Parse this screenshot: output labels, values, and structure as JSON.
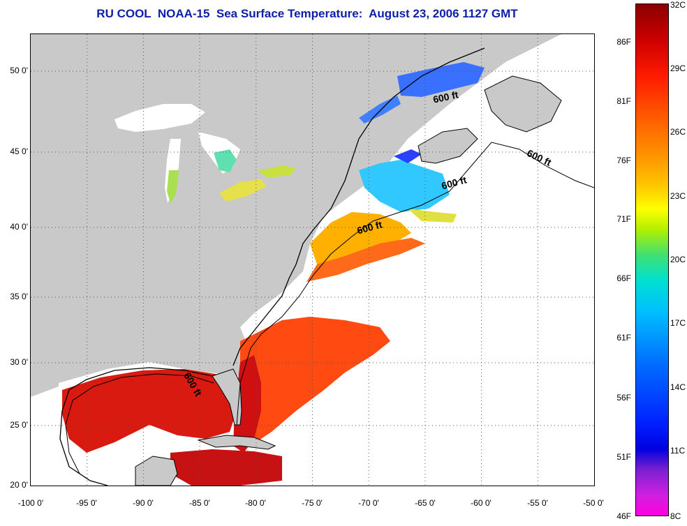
{
  "title": "RU COOL  NOAA-15  Sea Surface Temperature:  August 23, 2006 1127 GMT",
  "latitude_labels": [
    "50 0'",
    "45 0'",
    "40 0'",
    "35 0'",
    "30 0'",
    "25 0'",
    "20 0'"
  ],
  "longitude_labels": [
    "-100 0'",
    "-95 0'",
    "-90 0'",
    "-85 0'",
    "-80 0'",
    "-75 0'",
    "-70 0'",
    "-65 0'",
    "-60 0'",
    "-55 0'",
    "-50 0'"
  ],
  "colorbar": {
    "fahrenheit_labels": [
      "86F",
      "81F",
      "76F",
      "71F",
      "66F",
      "61F",
      "56F",
      "51F",
      "46F"
    ],
    "celsius_labels": [
      "32C",
      "29C",
      "26C",
      "23C",
      "20C",
      "17C",
      "14C",
      "11C",
      "8C"
    ]
  },
  "contour_labels": [
    "600 ft",
    "600 ft",
    "600 ft",
    "600 ft",
    "600 ft"
  ],
  "colors": {
    "title": "#0b1fa8",
    "land": "#c9c9c9",
    "no_data": "#ffffff",
    "hot": "#d01010",
    "warm": "#ff6a1a",
    "mild": "#ffc800",
    "cool": "#00d0ff",
    "cold": "#2040ff"
  }
}
